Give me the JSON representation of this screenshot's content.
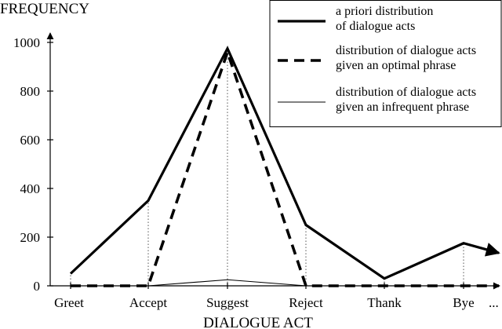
{
  "chart_data": {
    "type": "line",
    "title": "",
    "xlabel": "DIALOGUE ACT",
    "ylabel": "FREQUENCY",
    "categories": [
      "Greet",
      "Accept",
      "Suggest",
      "Reject",
      "Thank",
      "Bye"
    ],
    "x_axis_continuation": "...",
    "ylim": [
      0,
      1000
    ],
    "y_ticks": [
      0,
      200,
      400,
      600,
      800,
      1000
    ],
    "grid": "dotted vertical lines at each dialogue act",
    "legend_position": "top-right",
    "series": [
      {
        "name": "a priori distribution of dialogue acts",
        "legend_lines": [
          "a priori distribution",
          "of dialogue acts"
        ],
        "style": "thick-solid",
        "values": [
          50,
          350,
          975,
          250,
          30,
          175
        ],
        "tail_value": 135
      },
      {
        "name": "distribution of dialogue acts given an optimal phrase",
        "legend_lines": [
          "distribution of dialogue acts",
          "given an optimal phrase"
        ],
        "style": "thick-dashed",
        "values": [
          0,
          0,
          960,
          0,
          0,
          0
        ],
        "tail_value": 0
      },
      {
        "name": "distribution of dialogue acts given an infrequent phrase",
        "legend_lines": [
          "distribution of dialogue acts",
          "given an infrequent phrase"
        ],
        "style": "thin-solid",
        "values": [
          0,
          0,
          25,
          0,
          0,
          0
        ],
        "tail_value": 0
      }
    ],
    "colors": {
      "line": "#000000",
      "background": "#ffffff"
    }
  }
}
